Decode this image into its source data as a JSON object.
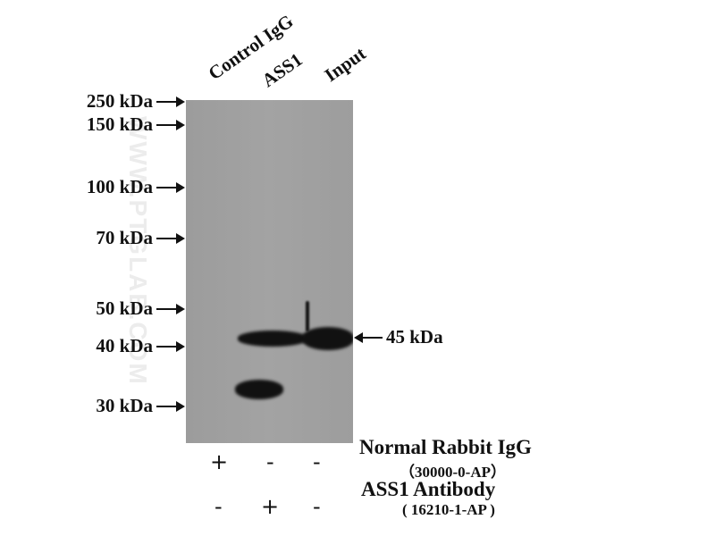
{
  "lanes": [
    "Control IgG",
    "ASS1",
    "Input"
  ],
  "markers": [
    "250 kDa",
    "150 kDa",
    "100 kDa",
    "70 kDa",
    "50 kDa",
    "40 kDa",
    "30 kDa"
  ],
  "target_label": "45 kDa",
  "watermark": "WWW.PTGLAB.COM",
  "legend": {
    "row1_label": "Normal Rabbit IgG",
    "row1_catalog": "（30000-0-AP）",
    "row1_signs": [
      "+",
      "-",
      "-"
    ],
    "row2_label": "ASS1 Antibody",
    "row2_catalog": "( 16210-1-AP )",
    "row2_signs": [
      "-",
      "+",
      "-"
    ]
  },
  "colors": {
    "blot": "#9f9f9f",
    "band": "#111111"
  }
}
